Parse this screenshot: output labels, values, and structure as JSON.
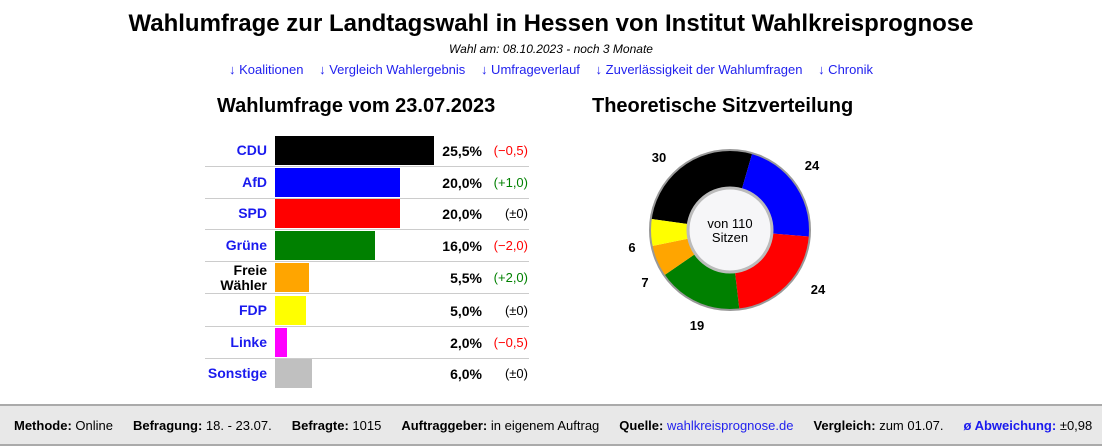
{
  "title": "Wahlumfrage zur Landtagswahl in Hessen von Institut Wahlkreisprognose",
  "subtitle": "Wahl am: 08.10.2023 - noch 3 Monate",
  "links": [
    "↓ Koalitionen",
    "↓ Vergleich Wahlergebnis",
    "↓ Umfrageverlauf",
    "↓ Zuverlässigkeit der Wahlumfragen",
    "↓ Chronik"
  ],
  "chart_data": [
    {
      "type": "bar",
      "title": "Wahlumfrage vom 23.07.2023",
      "xlim": [
        0,
        25.5
      ],
      "categories": [
        "CDU",
        "AfD",
        "SPD",
        "Grüne",
        "Freie Wähler",
        "FDP",
        "Linke",
        "Sonstige"
      ],
      "values": [
        25.5,
        20.0,
        20.0,
        16.0,
        5.5,
        5.0,
        2.0,
        6.0
      ],
      "value_labels": [
        "25,5%",
        "20,0%",
        "20,0%",
        "16,0%",
        "5,5%",
        "5,0%",
        "2,0%",
        "6,0%"
      ],
      "changes": [
        "(−0,5)",
        "(+1,0)",
        "(±0)",
        "(−2,0)",
        "(+2,0)",
        "(±0)",
        "(−0,5)",
        "(±0)"
      ],
      "change_colors": [
        "#ff0000",
        "#008000",
        "#000000",
        "#ff0000",
        "#008000",
        "#000000",
        "#ff0000",
        "#000000"
      ],
      "colors": [
        "#000000",
        "#0000ff",
        "#ff0000",
        "#008000",
        "#ffa500",
        "#ffff00",
        "#ff00ff",
        "#c0c0c0"
      ],
      "name_colors": [
        "#1a1aee",
        "#1a1aee",
        "#1a1aee",
        "#1a1aee",
        "#000000",
        "#1a1aee",
        "#1a1aee",
        "#1a1aee"
      ]
    },
    {
      "type": "pie",
      "title": "Theoretische Sitzverteilung",
      "center_text": [
        "von 110",
        "Sitzen"
      ],
      "categories": [
        "CDU",
        "AfD",
        "SPD",
        "Grüne",
        "Freie Wähler",
        "FDP"
      ],
      "values": [
        30,
        24,
        24,
        19,
        7,
        6
      ],
      "colors": [
        "#000000",
        "#0000ff",
        "#ff0000",
        "#008000",
        "#ffa500",
        "#ffff00"
      ]
    }
  ],
  "footer": [
    {
      "label": "Methode:",
      "value": "Online"
    },
    {
      "label": "Befragung:",
      "value": "18. - 23.07."
    },
    {
      "label": "Befragte:",
      "value": "1015"
    },
    {
      "label": "Auftraggeber:",
      "value": "in eigenem Auftrag"
    },
    {
      "label": "Quelle:",
      "value": "wahlkreisprognose.de",
      "link": true
    },
    {
      "label": "Vergleich:",
      "value": "zum 01.07."
    },
    {
      "label": "ø Abweichung:",
      "value": "±0,98",
      "labellink": true
    }
  ]
}
